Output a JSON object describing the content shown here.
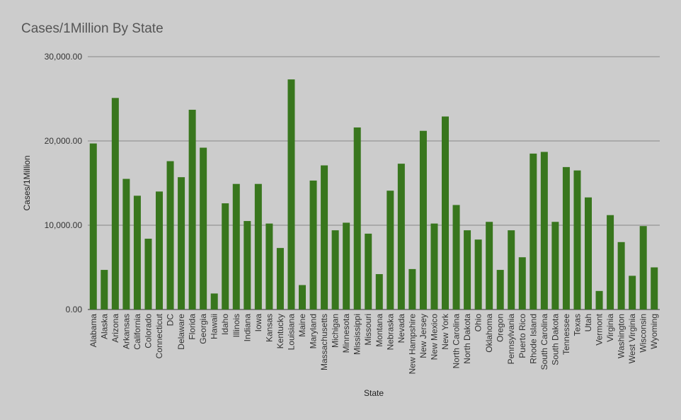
{
  "chart_data": {
    "type": "bar",
    "title": "Cases/1Million By State",
    "xlabel": "State",
    "ylabel": "Cases/1Million",
    "ylim": [
      0,
      30000
    ],
    "yticks": [
      "0.00",
      "10,000.00",
      "20,000.00",
      "30,000.00"
    ],
    "ytick_values": [
      0,
      10000,
      20000,
      30000
    ],
    "grid": true,
    "bar_color": "#38761d",
    "categories": [
      "Alabama",
      "Alaska",
      "Arizona",
      "Arkansas",
      "California",
      "Colorado",
      "Connecticut",
      "DC",
      "Delaware",
      "Florida",
      "Georgia",
      "Hawaii",
      "Idaho",
      "Illinois",
      "Indiana",
      "Iowa",
      "Kansas",
      "Kentucky",
      "Louisiana",
      "Maine",
      "Maryland",
      "Massachusetts",
      "Michigan",
      "Minnesota",
      "Mississippi",
      "Missouri",
      "Montana",
      "Nebraska",
      "Nevada",
      "New Hampshire",
      "New Jersey",
      "New Mexico",
      "New York",
      "North Carolina",
      "North Dakota",
      "Ohio",
      "Oklahoma",
      "Oregon",
      "Pennsylvania",
      "Puerto Rico",
      "Rhode Island",
      "South Carolina",
      "South Dakota",
      "Tennessee",
      "Texas",
      "Utah",
      "Vermont",
      "Virginia",
      "Washington",
      "West Virginia",
      "Wisconsin",
      "Wyoming"
    ],
    "values": [
      19700,
      4700,
      25100,
      15500,
      13500,
      8400,
      14000,
      17600,
      15700,
      23700,
      19200,
      1900,
      12600,
      14900,
      10500,
      14900,
      10200,
      7300,
      27300,
      2900,
      15300,
      17100,
      9400,
      10300,
      21600,
      9000,
      4200,
      14100,
      17300,
      4800,
      21200,
      10200,
      22900,
      12400,
      9400,
      8300,
      10400,
      4700,
      9400,
      6200,
      18500,
      18700,
      10400,
      16900,
      16500,
      13300,
      2200,
      11200,
      8000,
      4000,
      9900,
      5000
    ]
  }
}
